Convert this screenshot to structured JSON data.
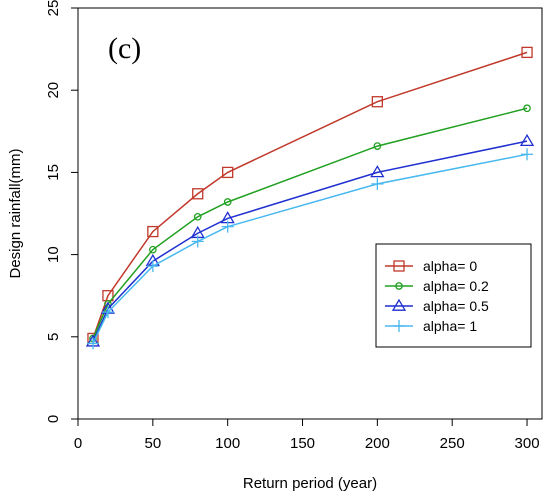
{
  "chart_data": {
    "type": "line",
    "panel_label": "(c)",
    "xlabel": "Return period (year)",
    "ylabel": "Design rainfall(mm)",
    "xlim": [
      0,
      310
    ],
    "ylim": [
      0,
      25
    ],
    "xticks": [
      0,
      50,
      100,
      150,
      200,
      250,
      300
    ],
    "yticks": [
      0,
      5,
      10,
      15,
      20,
      25
    ],
    "x": [
      10,
      20,
      50,
      80,
      100,
      200,
      300
    ],
    "legend_position": "center-right",
    "series": [
      {
        "name": "alpha= 0",
        "color": "#c0392b",
        "marker": "square",
        "values": [
          4.9,
          7.5,
          11.4,
          13.7,
          15.0,
          19.3,
          22.3
        ]
      },
      {
        "name": "alpha= 0.2",
        "color": "#22a022",
        "marker": "circle",
        "values": [
          4.9,
          7.0,
          10.3,
          12.3,
          13.2,
          16.6,
          18.9
        ]
      },
      {
        "name": "alpha= 0.5",
        "color": "#1f2fd0",
        "marker": "triangle",
        "values": [
          4.7,
          6.7,
          9.6,
          11.3,
          12.2,
          15.0,
          16.9
        ]
      },
      {
        "name": "alpha= 1",
        "color": "#48b8f0",
        "marker": "plus",
        "values": [
          4.6,
          6.5,
          9.3,
          10.8,
          11.7,
          14.3,
          16.1
        ]
      }
    ]
  }
}
